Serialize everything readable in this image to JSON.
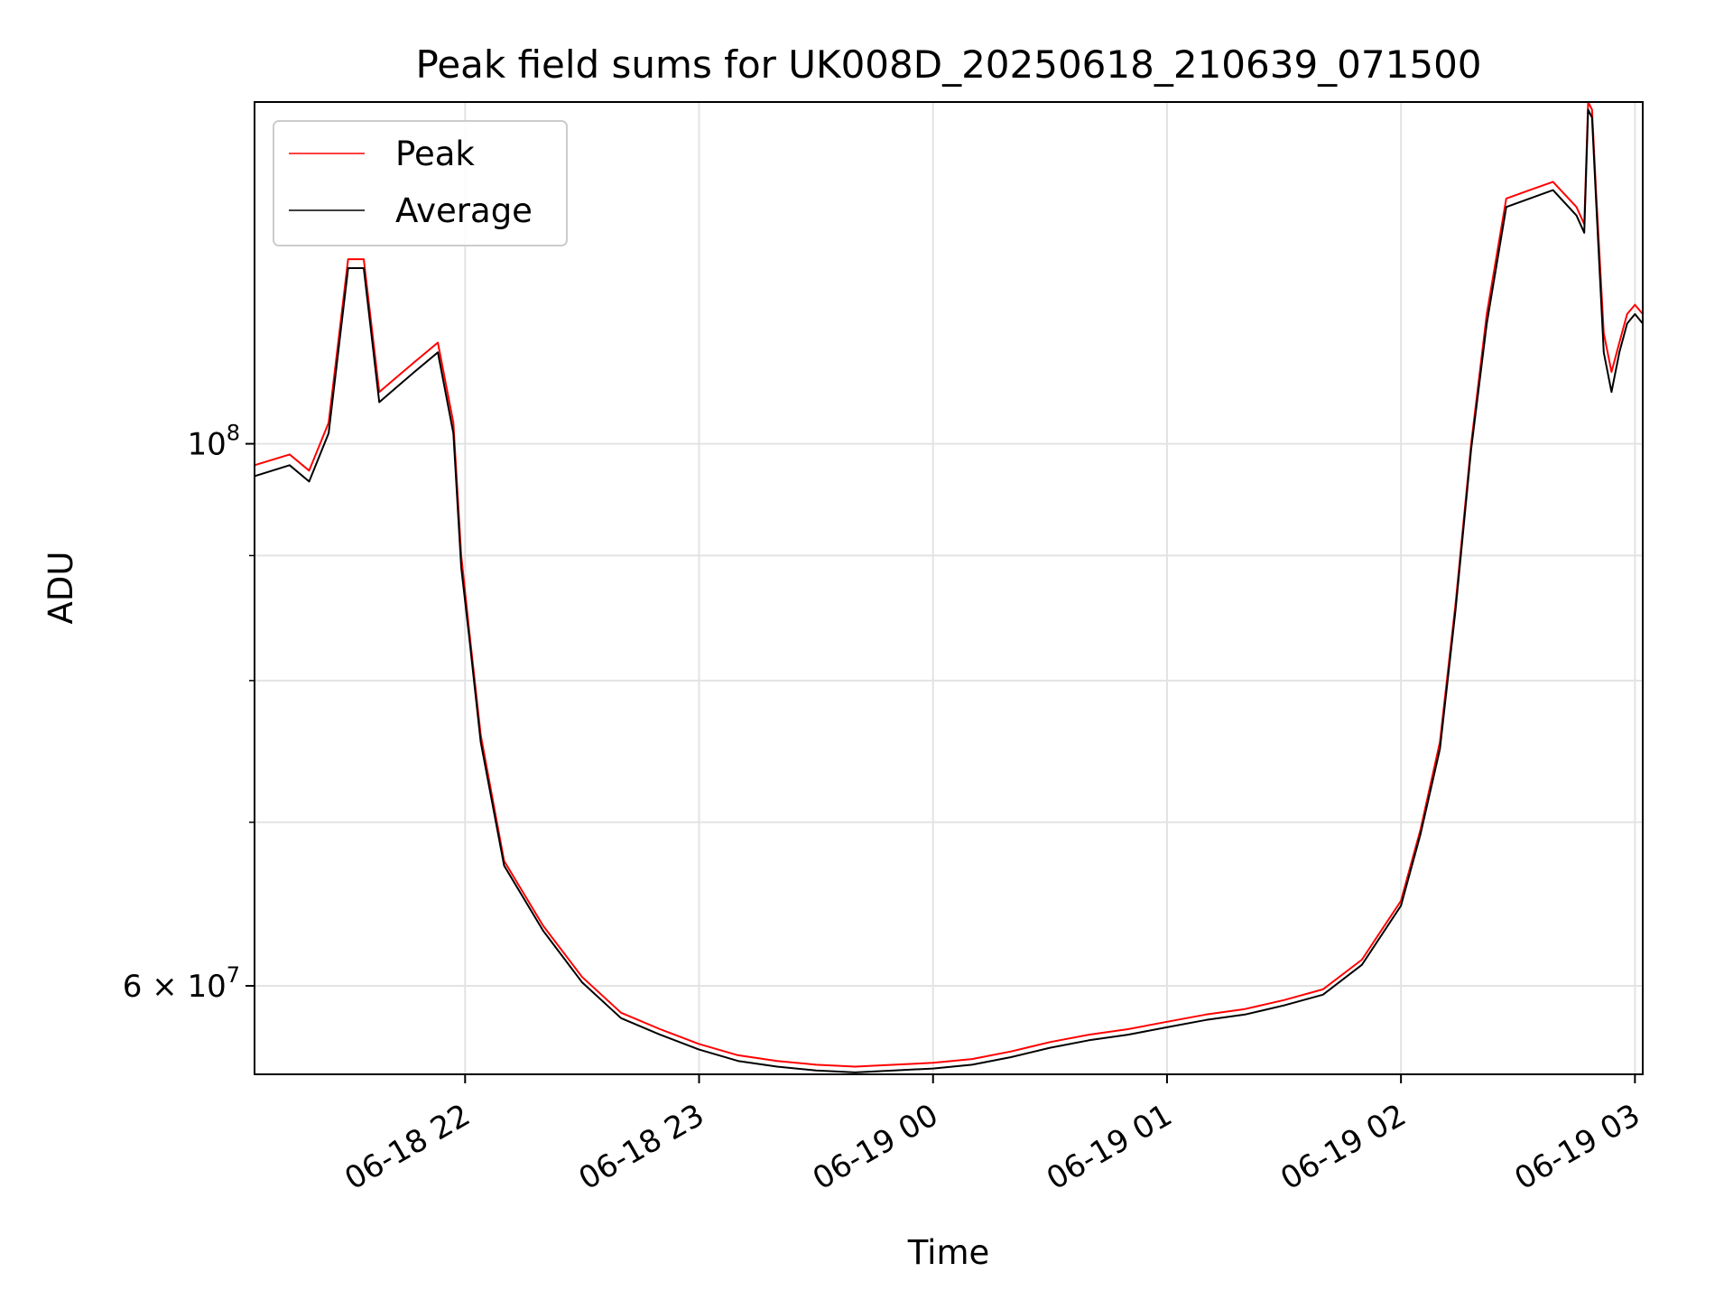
{
  "chart_data": {
    "type": "line",
    "title": "Peak field sums for UK008D_20250618_210639_071500",
    "xlabel": "Time",
    "ylabel": "ADU",
    "y_scale": "log",
    "grid": true,
    "legend_position": "top-left",
    "xlim": [
      "06-18 21:06",
      "06-19 03:02"
    ],
    "ylim": [
      55200000.0,
      138000000.0
    ],
    "x_ticks": [
      {
        "label": "06-18 22",
        "value": "06-18 22:00"
      },
      {
        "label": "06-18 23",
        "value": "06-18 23:00"
      },
      {
        "label": "06-19 00",
        "value": "06-19 00:00"
      },
      {
        "label": "06-19 01",
        "value": "06-19 01:00"
      },
      {
        "label": "06-19 02",
        "value": "06-19 02:00"
      },
      {
        "label": "06-19 03",
        "value": "06-19 03:00"
      }
    ],
    "y_ticks": [
      {
        "base": "10",
        "exp": "8",
        "mantissa": "",
        "value": 100000000.0
      },
      {
        "base": "10",
        "exp": "7",
        "mantissa": "6",
        "value": 60000000.0
      }
    ],
    "y_minor_ticks": [
      70000000.0,
      80000000.0,
      90000000.0
    ],
    "series": [
      {
        "name": "Peak",
        "color": "#ff0000",
        "x": [
          "06-18 21:06",
          "06-18 21:15",
          "06-18 21:20",
          "06-18 21:25",
          "06-18 21:30",
          "06-18 21:34",
          "06-18 21:38",
          "06-18 21:41",
          "06-18 21:47",
          "06-18 21:53",
          "06-18 21:57",
          "06-18 21:59",
          "06-18 22:01",
          "06-18 22:04",
          "06-18 22:10",
          "06-18 22:20",
          "06-18 22:30",
          "06-18 22:40",
          "06-18 22:50",
          "06-18 23:00",
          "06-18 23:10",
          "06-18 23:20",
          "06-18 23:30",
          "06-18 23:40",
          "06-18 23:50",
          "06-19 00:00",
          "06-19 00:10",
          "06-19 00:20",
          "06-19 00:30",
          "06-19 00:40",
          "06-19 00:50",
          "06-19 01:00",
          "06-19 01:10",
          "06-19 01:20",
          "06-19 01:30",
          "06-19 01:40",
          "06-19 01:50",
          "06-19 02:00",
          "06-19 02:05",
          "06-19 02:10",
          "06-19 02:14",
          "06-19 02:18",
          "06-19 02:22",
          "06-19 02:27",
          "06-19 02:33",
          "06-19 02:39",
          "06-19 02:45",
          "06-19 02:47",
          "06-19 02:48",
          "06-19 02:49",
          "06-19 02:50",
          "06-19 02:52",
          "06-19 02:54",
          "06-19 02:56",
          "06-19 02:58",
          "06-19 03:00",
          "06-19 03:02"
        ],
        "values": [
          98000000.0,
          99000000.0,
          97500000.0,
          102000000.0,
          119000000.0,
          119000000.0,
          105000000.0,
          106000000.0,
          108000000.0,
          110000000.0,
          102000000.0,
          90000000.0,
          84000000.0,
          76000000.0,
          67500000.0,
          63500000.0,
          60500000.0,
          58500000.0,
          57600000.0,
          56800000.0,
          56200000.0,
          55900000.0,
          55700000.0,
          55600000.0,
          55700000.0,
          55800000.0,
          56000000.0,
          56400000.0,
          56900000.0,
          57300000.0,
          57600000.0,
          58000000.0,
          58400000.0,
          58700000.0,
          59200000.0,
          59800000.0,
          61500000.0,
          65000000.0,
          69500000.0,
          75500000.0,
          86000000.0,
          100000000.0,
          113000000.0,
          126000000.0,
          127000000.0,
          128000000.0,
          125000000.0,
          123000000.0,
          138000000.0,
          137000000.0,
          127000000.0,
          111000000.0,
          107000000.0,
          110000000.0,
          113000000.0,
          114000000.0,
          113000000.0
        ]
      },
      {
        "name": "Average",
        "color": "#000000",
        "x": [
          "06-18 21:06",
          "06-18 21:15",
          "06-18 21:20",
          "06-18 21:25",
          "06-18 21:30",
          "06-18 21:34",
          "06-18 21:38",
          "06-18 21:41",
          "06-18 21:47",
          "06-18 21:53",
          "06-18 21:57",
          "06-18 21:59",
          "06-18 22:01",
          "06-18 22:04",
          "06-18 22:10",
          "06-18 22:20",
          "06-18 22:30",
          "06-18 22:40",
          "06-18 22:50",
          "06-18 23:00",
          "06-18 23:10",
          "06-18 23:20",
          "06-18 23:30",
          "06-18 23:40",
          "06-18 23:50",
          "06-19 00:00",
          "06-19 00:10",
          "06-19 00:20",
          "06-19 00:30",
          "06-19 00:40",
          "06-19 00:50",
          "06-19 01:00",
          "06-19 01:10",
          "06-19 01:20",
          "06-19 01:30",
          "06-19 01:40",
          "06-19 01:50",
          "06-19 02:00",
          "06-19 02:05",
          "06-19 02:10",
          "06-19 02:14",
          "06-19 02:18",
          "06-19 02:22",
          "06-19 02:27",
          "06-19 02:33",
          "06-19 02:39",
          "06-19 02:45",
          "06-19 02:47",
          "06-19 02:48",
          "06-19 02:49",
          "06-19 02:50",
          "06-19 02:52",
          "06-19 02:54",
          "06-19 02:56",
          "06-19 02:58",
          "06-19 03:00",
          "06-19 03:02"
        ],
        "values": [
          97000000.0,
          98000000.0,
          96500000.0,
          101000000.0,
          118000000.0,
          118000000.0,
          104000000.0,
          105000000.0,
          107000000.0,
          109000000.0,
          101000000.0,
          89000000.0,
          83500000.0,
          75500000.0,
          67200000.0,
          63200000.0,
          60200000.0,
          58200000.0,
          57300000.0,
          56500000.0,
          55900000.0,
          55600000.0,
          55400000.0,
          55300000.0,
          55400000.0,
          55500000.0,
          55700000.0,
          56100000.0,
          56600000.0,
          57000000.0,
          57300000.0,
          57700000.0,
          58100000.0,
          58400000.0,
          58900000.0,
          59500000.0,
          61200000.0,
          64700000.0,
          69200000.0,
          75000000.0,
          85500000.0,
          99500000.0,
          112000000.0,
          125000000.0,
          126000000.0,
          127000000.0,
          124000000.0,
          122000000.0,
          137000000.0,
          136000000.0,
          126000000.0,
          109000000.0,
          105000000.0,
          109000000.0,
          112000000.0,
          113000000.0,
          112000000.0
        ]
      }
    ]
  }
}
